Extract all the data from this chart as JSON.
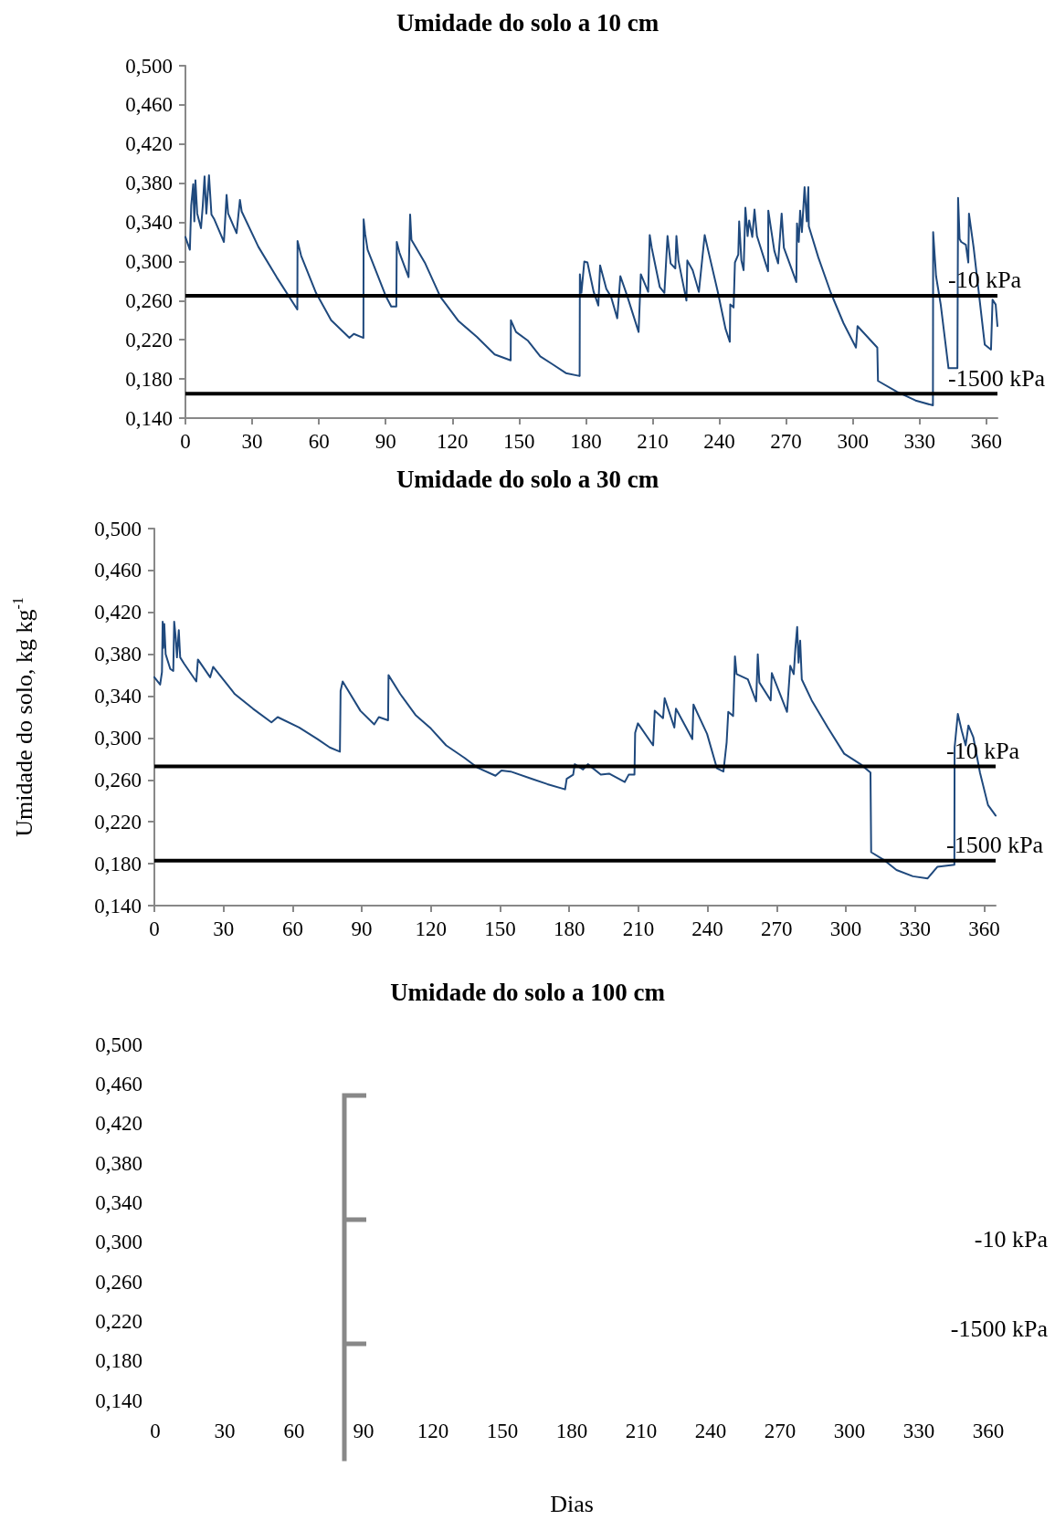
{
  "chart_data": [
    {
      "type": "line",
      "title": "Umidade do solo a 10 cm",
      "xlim": [
        0,
        365
      ],
      "xticks": [
        0,
        30,
        60,
        90,
        120,
        150,
        180,
        210,
        240,
        270,
        300,
        330,
        360
      ],
      "ylim": [
        0.14,
        0.5
      ],
      "yticks": [
        {
          "value": 0.14,
          "label": "0,140"
        },
        {
          "value": 0.18,
          "label": "0,180"
        },
        {
          "value": 0.22,
          "label": "0,220"
        },
        {
          "value": 0.26,
          "label": "0,260"
        },
        {
          "value": 0.3,
          "label": "0,300"
        },
        {
          "value": 0.34,
          "label": "0,340"
        },
        {
          "value": 0.38,
          "label": "0,380"
        },
        {
          "value": 0.42,
          "label": "0,420"
        },
        {
          "value": 0.46,
          "label": "0,460"
        },
        {
          "value": 0.5,
          "label": "0,500"
        }
      ],
      "grid": false,
      "marker": "none",
      "line_style": "solid",
      "ref_lines": [
        {
          "axis": "y",
          "value": 0.265,
          "label": "-10 kPa",
          "color": "#000000"
        },
        {
          "axis": "y",
          "value": 0.165,
          "label": "-1500 kPa",
          "color": "#000000"
        }
      ],
      "series": [
        {
          "color": "#1f497d",
          "x": [
            0,
            2,
            2.6,
            3.5,
            4,
            4.5,
            5.3,
            7,
            7.8,
            8.6,
            9.4,
            10.6,
            11.7,
            13,
            17.3,
            18.5,
            19.2,
            23,
            24.5,
            25.3,
            32.8,
            41,
            50.3,
            50.4,
            52,
            58.7,
            65.5,
            73.7,
            75.7,
            80,
            80.1,
            80.8,
            81.9,
            90,
            92.5,
            94.8,
            95,
            96.2,
            100.3,
            101,
            101.6,
            107.8,
            114.6,
            122.8,
            131,
            139,
            146.2,
            146.3,
            148.6,
            154,
            159.5,
            165,
            171,
            177.2,
            177.3,
            178,
            179.3,
            180.7,
            183.5,
            185.6,
            186.4,
            189.2,
            191.3,
            194.1,
            195.5,
            198.4,
            203.7,
            204.7,
            208,
            208.7,
            209.6,
            213.2,
            215.3,
            216.7,
            218.1,
            220.2,
            220.7,
            221.6,
            225.2,
            225.6,
            228,
            230.8,
            233.4,
            235,
            239.3,
            242.8,
            244.7,
            244.9,
            246.4,
            247,
            248.5,
            248.9,
            249.9,
            250.9,
            251.7,
            252.7,
            253.4,
            254.8,
            255.8,
            256.9,
            261.9,
            262,
            264.7,
            266.4,
            268,
            269,
            274.6,
            274.9,
            275.7,
            276.3,
            277.1,
            278.3,
            279.3,
            280,
            280.2,
            284.5,
            290.1,
            295.8,
            301.4,
            302.1,
            311,
            311.3,
            319.8,
            328.2,
            336,
            336.1,
            337.4,
            339.5,
            343,
            347,
            347.3,
            348,
            348.7,
            350.8,
            351.9,
            352.2,
            354.3,
            359.3,
            362.1,
            362.8,
            364.2,
            365
          ],
          "values": [
            0.325,
            0.312,
            0.357,
            0.379,
            0.341,
            0.383,
            0.349,
            0.334,
            0.357,
            0.387,
            0.349,
            0.388,
            0.348,
            0.343,
            0.32,
            0.368,
            0.349,
            0.329,
            0.363,
            0.351,
            0.315,
            0.284,
            0.251,
            0.321,
            0.306,
            0.268,
            0.24,
            0.222,
            0.226,
            0.222,
            0.343,
            0.328,
            0.312,
            0.265,
            0.254,
            0.254,
            0.32,
            0.309,
            0.284,
            0.348,
            0.322,
            0.298,
            0.264,
            0.239,
            0.223,
            0.205,
            0.199,
            0.24,
            0.228,
            0.219,
            0.203,
            0.195,
            0.186,
            0.183,
            0.287,
            0.268,
            0.3,
            0.299,
            0.269,
            0.255,
            0.296,
            0.272,
            0.264,
            0.242,
            0.285,
            0.266,
            0.228,
            0.287,
            0.269,
            0.327,
            0.314,
            0.274,
            0.268,
            0.326,
            0.298,
            0.293,
            0.326,
            0.301,
            0.26,
            0.301,
            0.291,
            0.269,
            0.327,
            0.311,
            0.269,
            0.231,
            0.218,
            0.256,
            0.253,
            0.299,
            0.307,
            0.341,
            0.301,
            0.291,
            0.355,
            0.326,
            0.342,
            0.325,
            0.353,
            0.326,
            0.29,
            0.352,
            0.311,
            0.298,
            0.349,
            0.314,
            0.279,
            0.339,
            0.32,
            0.352,
            0.33,
            0.376,
            0.341,
            0.376,
            0.336,
            0.304,
            0.268,
            0.237,
            0.212,
            0.234,
            0.212,
            0.178,
            0.167,
            0.158,
            0.153,
            0.33,
            0.285,
            0.256,
            0.191,
            0.191,
            0.365,
            0.323,
            0.32,
            0.317,
            0.299,
            0.349,
            0.314,
            0.215,
            0.21,
            0.261,
            0.256,
            0.234
          ]
        }
      ]
    },
    {
      "type": "line",
      "title": "Umidade do solo a 30 cm",
      "ylabel": "Umidade do solo, kg kg$^{-1}$",
      "xlim": [
        0,
        365
      ],
      "xticks": [
        0,
        30,
        60,
        90,
        120,
        150,
        180,
        210,
        240,
        270,
        300,
        330,
        360
      ],
      "ylim": [
        0.14,
        0.5
      ],
      "yticks": [
        {
          "value": 0.14,
          "label": "0,140"
        },
        {
          "value": 0.18,
          "label": "0,180"
        },
        {
          "value": 0.22,
          "label": "0,220"
        },
        {
          "value": 0.26,
          "label": "0,260"
        },
        {
          "value": 0.3,
          "label": "0,300"
        },
        {
          "value": 0.34,
          "label": "0,340"
        },
        {
          "value": 0.38,
          "label": "0,380"
        },
        {
          "value": 0.42,
          "label": "0,420"
        },
        {
          "value": 0.46,
          "label": "0,460"
        },
        {
          "value": 0.5,
          "label": "0,500"
        }
      ],
      "grid": false,
      "marker": "none",
      "line_style": "solid",
      "ref_lines": [
        {
          "axis": "y",
          "value": 0.273,
          "label": "-10 kPa",
          "color": "#000000"
        },
        {
          "axis": "y",
          "value": 0.183,
          "label": "-1500 kPa",
          "color": "#000000"
        }
      ],
      "series": [
        {
          "color": "#1f497d",
          "x": [
            0,
            2.5,
            3.3,
            3.6,
            3.9,
            4.3,
            4.9,
            6.9,
            8.2,
            8.6,
            9.3,
            9.8,
            10.6,
            11.2,
            12.9,
            18.2,
            18.9,
            24.2,
            25.5,
            34.9,
            42.8,
            50.8,
            53.5,
            62.8,
            70.8,
            76.1,
            80.5,
            80.8,
            81.7,
            89.4,
            95.4,
            97.4,
            101.4,
            101.6,
            106.7,
            113.3,
            120,
            126.6,
            134.6,
            140,
            148,
            150.6,
            154.6,
            163.9,
            170.5,
            178.2,
            178.9,
            181.7,
            182.4,
            186,
            188.1,
            193.7,
            197.3,
            204.1,
            205.8,
            208.3,
            208.6,
            209.8,
            216.4,
            217.1,
            220.7,
            221.4,
            225.6,
            226.3,
            233.4,
            233.9,
            239.8,
            244.1,
            246.9,
            248.3,
            249,
            251.1,
            251.9,
            252.6,
            257.5,
            261.1,
            261.8,
            262.5,
            267.4,
            267.9,
            274.5,
            275.9,
            277.4,
            278.1,
            278.9,
            279.5,
            280.2,
            280.9,
            285.2,
            292.2,
            299.3,
            306.4,
            310.7,
            311,
            316.3,
            322,
            329.1,
            335.5,
            339.7,
            347.1,
            347.2,
            348.6,
            350.3,
            352,
            353.2,
            355.3,
            358.2,
            361.7,
            365
          ],
          "values": [
            0.358,
            0.351,
            0.363,
            0.411,
            0.386,
            0.409,
            0.38,
            0.366,
            0.364,
            0.411,
            0.395,
            0.377,
            0.403,
            0.377,
            0.371,
            0.354,
            0.375,
            0.358,
            0.368,
            0.342,
            0.328,
            0.315,
            0.32,
            0.31,
            0.299,
            0.291,
            0.287,
            0.345,
            0.354,
            0.326,
            0.313,
            0.32,
            0.317,
            0.36,
            0.342,
            0.322,
            0.309,
            0.293,
            0.281,
            0.272,
            0.264,
            0.269,
            0.268,
            0.261,
            0.256,
            0.251,
            0.261,
            0.265,
            0.275,
            0.27,
            0.275,
            0.265,
            0.266,
            0.258,
            0.265,
            0.265,
            0.305,
            0.314,
            0.293,
            0.326,
            0.319,
            0.338,
            0.31,
            0.328,
            0.299,
            0.332,
            0.304,
            0.271,
            0.268,
            0.296,
            0.325,
            0.321,
            0.378,
            0.361,
            0.356,
            0.335,
            0.38,
            0.353,
            0.336,
            0.362,
            0.325,
            0.369,
            0.361,
            0.385,
            0.406,
            0.372,
            0.393,
            0.356,
            0.336,
            0.31,
            0.285,
            0.275,
            0.267,
            0.191,
            0.184,
            0.174,
            0.168,
            0.166,
            0.177,
            0.179,
            0.291,
            0.323,
            0.307,
            0.293,
            0.312,
            0.301,
            0.267,
            0.236,
            0.226
          ]
        }
      ]
    },
    {
      "type": "line",
      "title": "Umidade do solo a 100 cm",
      "xlabel": "Dias",
      "xlim": [
        0,
        360
      ],
      "xticks": [
        0,
        30,
        60,
        90,
        120,
        150,
        180,
        210,
        240,
        270,
        300,
        330,
        360
      ],
      "ylim": [
        0.14,
        0.5
      ],
      "yticks": [
        {
          "value": 0.14,
          "label": "0,140"
        },
        {
          "value": 0.18,
          "label": "0,180"
        },
        {
          "value": 0.22,
          "label": "0,220"
        },
        {
          "value": 0.26,
          "label": "0,260"
        },
        {
          "value": 0.3,
          "label": "0,300"
        },
        {
          "value": 0.34,
          "label": "0,340"
        },
        {
          "value": 0.38,
          "label": "0,380"
        },
        {
          "value": 0.42,
          "label": "0,420"
        },
        {
          "value": 0.46,
          "label": "0,460"
        },
        {
          "value": 0.5,
          "label": "0,500"
        }
      ],
      "grid": false,
      "annotations": [
        "-10 kPa",
        "-1500 kPa"
      ]
    }
  ]
}
